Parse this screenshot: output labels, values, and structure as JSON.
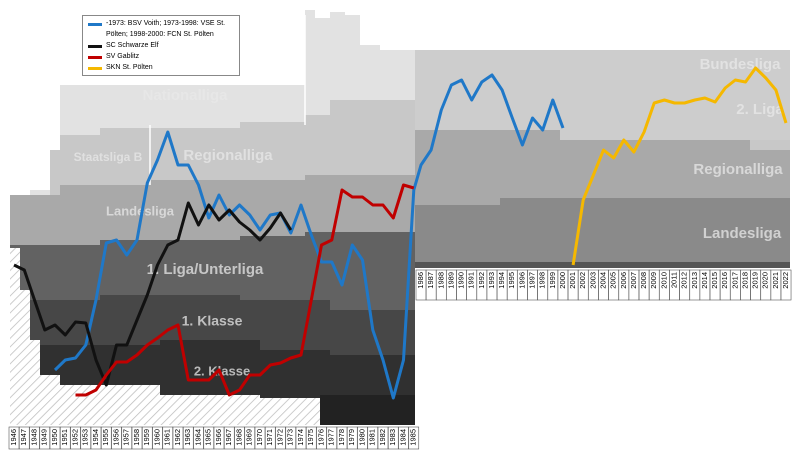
{
  "chart_data": {
    "type": "line",
    "x": [
      "1946",
      "1947",
      "1948",
      "1949",
      "1950",
      "1951",
      "1952",
      "1953",
      "1954",
      "1955",
      "1956",
      "1957",
      "1958",
      "1959",
      "1960",
      "1961",
      "1962",
      "1963",
      "1964",
      "1965",
      "1966",
      "1967",
      "1968",
      "1969",
      "1970",
      "1971",
      "1972",
      "1973",
      "1974",
      "1975",
      "1976",
      "1977",
      "1978",
      "1979",
      "1980",
      "1981",
      "1982",
      "1983",
      "1984",
      "1985",
      "1986",
      "1987",
      "1988",
      "1989",
      "1990",
      "1991",
      "1992",
      "1993",
      "1994",
      "1995",
      "1996",
      "1997",
      "1998",
      "1999",
      "2000",
      "2001",
      "2002",
      "2003",
      "2004",
      "2005",
      "2006",
      "2007",
      "2008",
      "2009",
      "2010",
      "2011",
      "2012",
      "2013",
      "2014",
      "2015",
      "2016",
      "2017",
      "2018",
      "2019",
      "2020",
      "2021",
      "2022"
    ],
    "ylim": [
      0,
      420
    ],
    "annotations": [
      "Nationalliga",
      "Staatsliga B",
      "Regionalliga",
      "Landesliga",
      "1. Liga/Unterliga",
      "1. Klasse",
      "2. Klasse",
      "Bundesliga",
      "2. Liga",
      "Regionalliga",
      "Landesliga"
    ],
    "series": [
      {
        "name": "-1973: BSV Voith; 1973-1998: VSE St. Pölten; 1998-2000: FCN St. Pölten",
        "color": "#1f78c8",
        "values": [
          null,
          null,
          null,
          null,
          60,
          70,
          72,
          85,
          130,
          187,
          190,
          175,
          190,
          247,
          270,
          298,
          265,
          265,
          245,
          212,
          235,
          215,
          225,
          215,
          200,
          215,
          217,
          197,
          225,
          195,
          168,
          168,
          145,
          185,
          170,
          100,
          70,
          32,
          70,
          240,
          265,
          280,
          320,
          345,
          350,
          330,
          348,
          355,
          340,
          312,
          285,
          312,
          300,
          330,
          302,
          null,
          null,
          null,
          null,
          null,
          null,
          null,
          null,
          null,
          null,
          null,
          null,
          null,
          null,
          null,
          null,
          null,
          null,
          null,
          null,
          null,
          null
        ]
      },
      {
        "name": "SC Schwarze Elf",
        "color": "#111111",
        "values": [
          165,
          160,
          130,
          100,
          105,
          95,
          108,
          107,
          70,
          45,
          85,
          85,
          110,
          135,
          165,
          185,
          190,
          227,
          205,
          225,
          210,
          220,
          208,
          200,
          190,
          202,
          217,
          200,
          null,
          null,
          null,
          null,
          null,
          null,
          null,
          null,
          null,
          null,
          null,
          null,
          null,
          null,
          null,
          null,
          null,
          null,
          null,
          null,
          null,
          null,
          null,
          null,
          null,
          null,
          null,
          null,
          null,
          null,
          null,
          null,
          null,
          null,
          null,
          null,
          null,
          null,
          null,
          null,
          null,
          null,
          null,
          null,
          null,
          null,
          null,
          null,
          null
        ]
      },
      {
        "name": "SV Gablitz",
        "color": "#c00000",
        "values": [
          null,
          null,
          null,
          null,
          null,
          null,
          35,
          35,
          40,
          55,
          68,
          68,
          75,
          85,
          92,
          100,
          105,
          50,
          50,
          50,
          60,
          35,
          40,
          55,
          55,
          65,
          67,
          72,
          75,
          130,
          185,
          190,
          240,
          233,
          233,
          225,
          225,
          212,
          245,
          242,
          null,
          null,
          null,
          null,
          null,
          null,
          null,
          null,
          null,
          null,
          null,
          null,
          null,
          null,
          null,
          null,
          null,
          null,
          null,
          null,
          null,
          null,
          null,
          null,
          null,
          null,
          null,
          null,
          null,
          null,
          null,
          null,
          null,
          null,
          null,
          null,
          null
        ]
      },
      {
        "name": "SKN St. Pölten",
        "color": "#f5b800",
        "values": [
          null,
          null,
          null,
          null,
          null,
          null,
          null,
          null,
          null,
          null,
          null,
          null,
          null,
          null,
          null,
          null,
          null,
          null,
          null,
          null,
          null,
          null,
          null,
          null,
          null,
          null,
          null,
          null,
          null,
          null,
          null,
          null,
          null,
          null,
          null,
          null,
          null,
          null,
          null,
          null,
          null,
          null,
          null,
          null,
          null,
          null,
          null,
          null,
          null,
          null,
          null,
          null,
          null,
          null,
          null,
          165,
          230,
          255,
          280,
          272,
          290,
          278,
          298,
          327,
          330,
          327,
          327,
          330,
          332,
          328,
          342,
          350,
          348,
          362,
          352,
          340,
          307
        ]
      }
    ]
  }
}
